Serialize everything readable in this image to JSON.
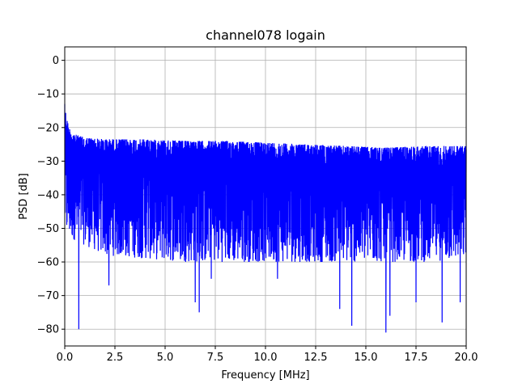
{
  "chart_data": {
    "type": "line",
    "title": "channel078 logain",
    "xlabel": "Frequency [MHz]",
    "ylabel": "PSD [dB]",
    "xlim": [
      0,
      20
    ],
    "ylim": [
      -85,
      4
    ],
    "xticks": [
      0,
      2.5,
      5,
      7.5,
      10,
      12.5,
      15,
      17.5,
      20
    ],
    "xtick_labels": [
      "0.0",
      "2.5",
      "5.0",
      "7.5",
      "10.0",
      "12.5",
      "15.0",
      "17.5",
      "20.0"
    ],
    "yticks": [
      0,
      -10,
      -20,
      -30,
      -40,
      -50,
      -60,
      -70,
      -80
    ],
    "ytick_labels": [
      "0",
      "−10",
      "−20",
      "−30",
      "−40",
      "−50",
      "−60",
      "−70",
      "−80"
    ],
    "grid": true,
    "line_color": "#0000ff",
    "series": [
      {
        "description": "Dense noisy power spectral density trace; upper envelope decays from about -13 dB at 0 MHz to about -22 dB by 2 MHz and slowly to about -25 dB at 20 MHz; bulk of lower excursions around -55 to -60 dB; deep notches listed below",
        "upper_envelope": {
          "x": [
            0,
            0.2,
            0.5,
            1,
            2,
            4,
            6,
            8,
            10,
            12,
            14,
            16,
            18,
            20
          ],
          "y": [
            -13,
            -19,
            -21,
            -22,
            -22.5,
            -22.5,
            -23,
            -23,
            -23.5,
            -24,
            -24.5,
            -25,
            -24.5,
            -24.5
          ]
        },
        "lower_envelope": {
          "x": [
            0,
            2,
            4,
            6,
            8,
            10,
            12,
            14,
            16,
            18,
            20
          ],
          "y": [
            -52,
            -58,
            -59,
            -60,
            -60,
            -60,
            -60,
            -60,
            -60,
            -60,
            -59
          ]
        },
        "notches": {
          "x": [
            0.7,
            2.2,
            6.5,
            6.7,
            7.3,
            10.6,
            13.7,
            14.3,
            16.0,
            16.2,
            17.5,
            18.8,
            19.7
          ],
          "y": [
            -80,
            -67,
            -72,
            -75,
            -65,
            -65,
            -74,
            -79,
            -81,
            -76,
            -72,
            -78,
            -72
          ]
        }
      }
    ]
  }
}
